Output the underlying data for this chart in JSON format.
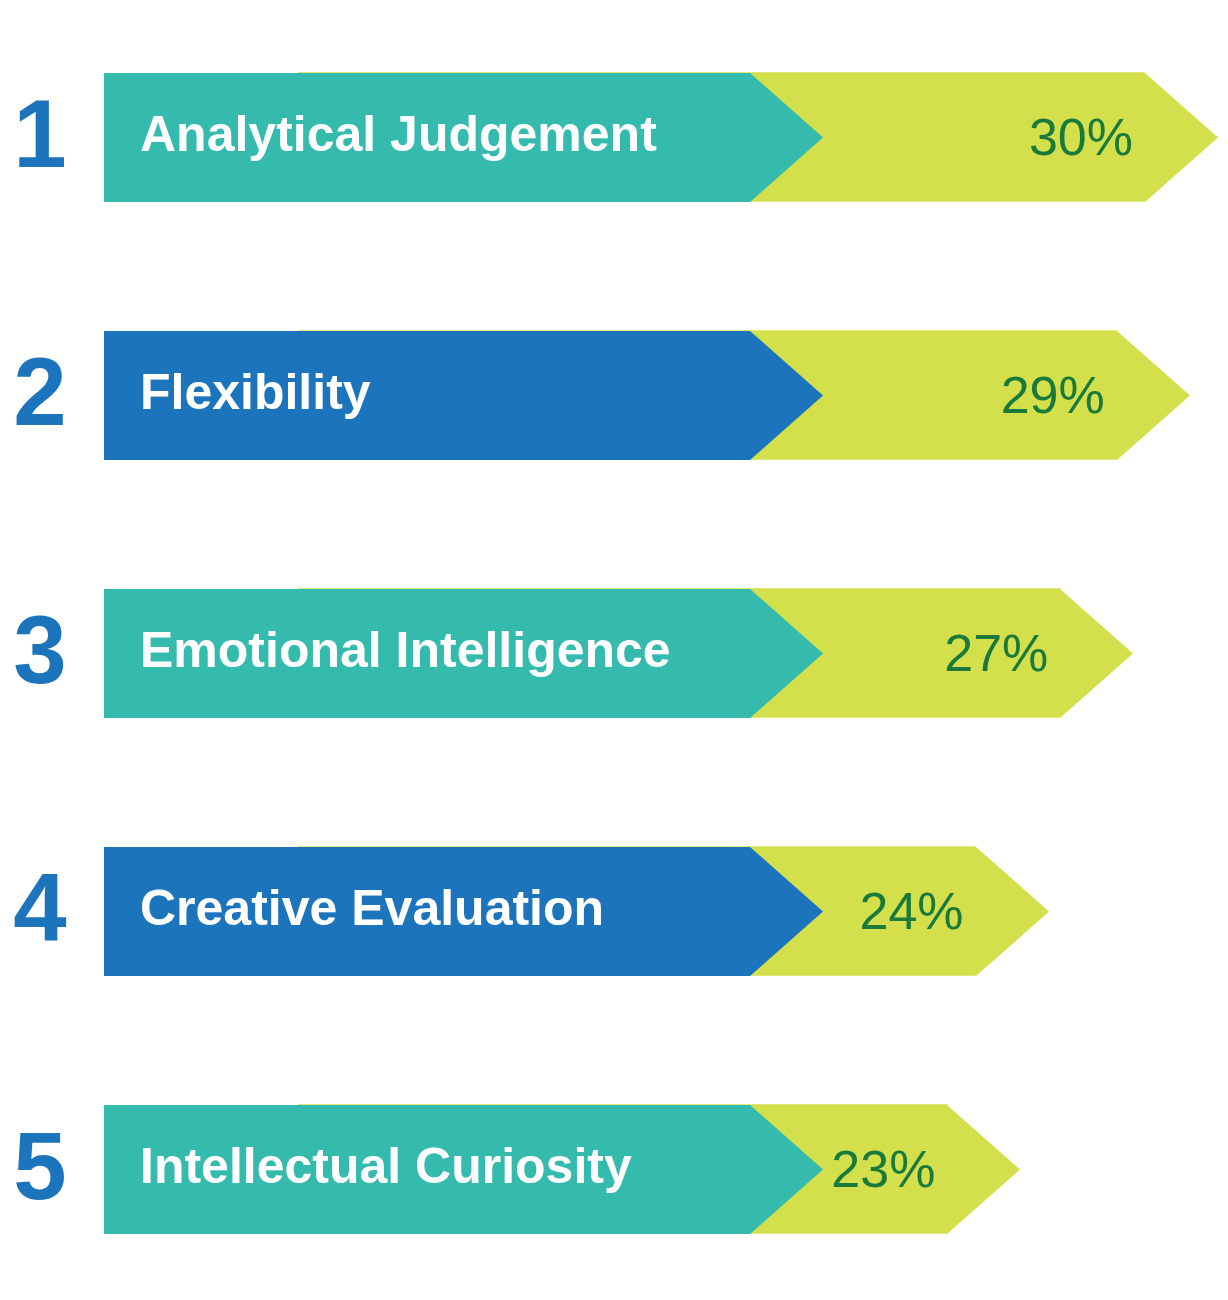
{
  "chart_data": {
    "type": "bar",
    "orientation": "horizontal",
    "tick_labels": "y",
    "categories": [
      "Analytical Judgement",
      "Flexibility",
      "Emotional Intelligence",
      "Creative Evaluation",
      "Intellectual Curiosity"
    ],
    "values": [
      30,
      29,
      27,
      24,
      23
    ],
    "value_labels": [
      "30%",
      "29%",
      "27%",
      "24%",
      "23%"
    ],
    "colors": [
      "#d4e04b",
      "#d4e04b",
      "#d4e04b",
      "#d4e04b",
      "#d4e04b"
    ],
    "annotations": [
      "1",
      "2",
      "3",
      "4",
      "5"
    ]
  }
}
